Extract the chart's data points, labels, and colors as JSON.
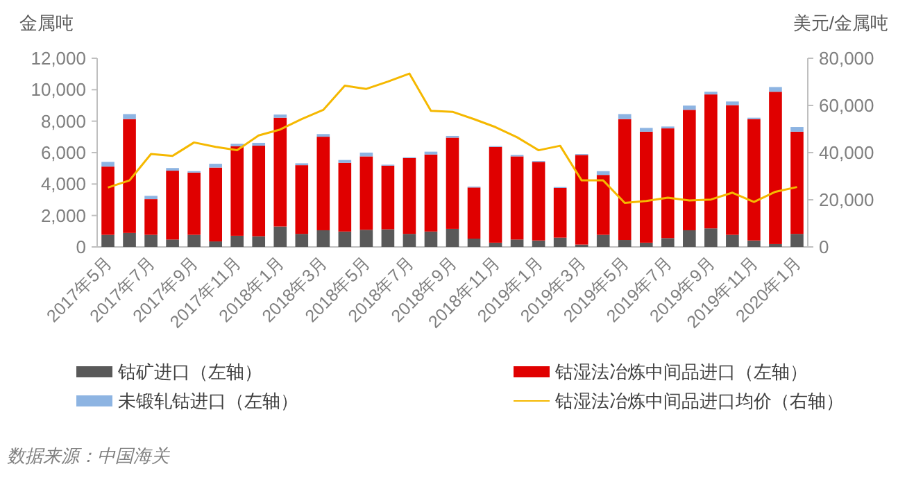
{
  "chart_data": {
    "type": "bar",
    "stacked": true,
    "ylabel": "金属吨",
    "y2label": "美元/金属吨",
    "categories": [
      "2017年5月",
      null,
      "2017年7月",
      null,
      "2017年9月",
      null,
      "2017年11月",
      null,
      "2018年1月",
      null,
      "2018年3月",
      null,
      "2018年5月",
      null,
      "2018年7月",
      null,
      "2018年9月",
      null,
      "2018年11月",
      null,
      "2019年1月",
      null,
      "2019年3月",
      null,
      "2019年5月",
      null,
      "2019年7月",
      null,
      "2019年9月",
      null,
      "2019年11月",
      null,
      "2020年1月"
    ],
    "series": [
      {
        "name": "钴矿进口（左轴）",
        "color": "#595959",
        "values": [
          770,
          890,
          770,
          470,
          770,
          350,
          710,
          680,
          1300,
          830,
          1060,
          980,
          1090,
          1120,
          830,
          980,
          1150,
          530,
          270,
          470,
          410,
          590,
          150,
          770,
          440,
          270,
          560,
          1060,
          1180,
          770,
          410,
          180,
          830
        ]
      },
      {
        "name": "钴湿法冶炼中间品进口（左轴）",
        "color": "#e00000",
        "values": [
          4340,
          7240,
          2270,
          4380,
          3960,
          4700,
          5700,
          5760,
          6920,
          4370,
          5950,
          4370,
          4670,
          4050,
          4820,
          4900,
          5800,
          3250,
          6090,
          5290,
          5000,
          3160,
          5700,
          3810,
          7690,
          7060,
          6980,
          7660,
          8520,
          8250,
          7720,
          9690,
          6500
        ]
      },
      {
        "name": "未锻轧钴进口（左轴）",
        "color": "#8db4e2",
        "values": [
          300,
          320,
          210,
          170,
          90,
          240,
          150,
          180,
          200,
          120,
          170,
          180,
          240,
          60,
          50,
          180,
          110,
          60,
          50,
          90,
          60,
          60,
          60,
          240,
          320,
          240,
          120,
          270,
          170,
          230,
          90,
          300,
          300
        ]
      },
      {
        "name": "钴湿法冶炼中间品进口均价（右轴）",
        "type": "line",
        "axis": "y2",
        "color": "#f5b800",
        "values": [
          25200,
          28200,
          39400,
          38600,
          44300,
          42400,
          41000,
          47300,
          49800,
          54200,
          58100,
          68400,
          67000,
          70100,
          73500,
          57700,
          57300,
          54200,
          50800,
          46500,
          41000,
          42900,
          28200,
          28200,
          18700,
          19500,
          20900,
          19700,
          20100,
          23000,
          19100,
          23400,
          25400
        ]
      }
    ],
    "ylim": [
      0,
      12000
    ],
    "yticks": [
      0,
      {
        "value": 2000,
        "label": "2,000"
      },
      {
        "value": 4000,
        "label": "4,000"
      },
      {
        "value": 6000,
        "label": "6,000"
      },
      {
        "value": 8000,
        "label": "8,000"
      },
      {
        "value": 10000,
        "label": "10,000"
      },
      {
        "value": 12000,
        "label": "12,000"
      }
    ],
    "y2lim": [
      0,
      80000
    ],
    "y2ticks": [
      0,
      {
        "value": 20000,
        "label": "20,000"
      },
      {
        "value": 40000,
        "label": "40,000"
      },
      {
        "value": 60000,
        "label": "60,000"
      },
      {
        "value": 80000,
        "label": "80,000"
      }
    ],
    "legend": "bottom",
    "grid": false,
    "annotations": [
      "数据来源：中国海关"
    ]
  }
}
